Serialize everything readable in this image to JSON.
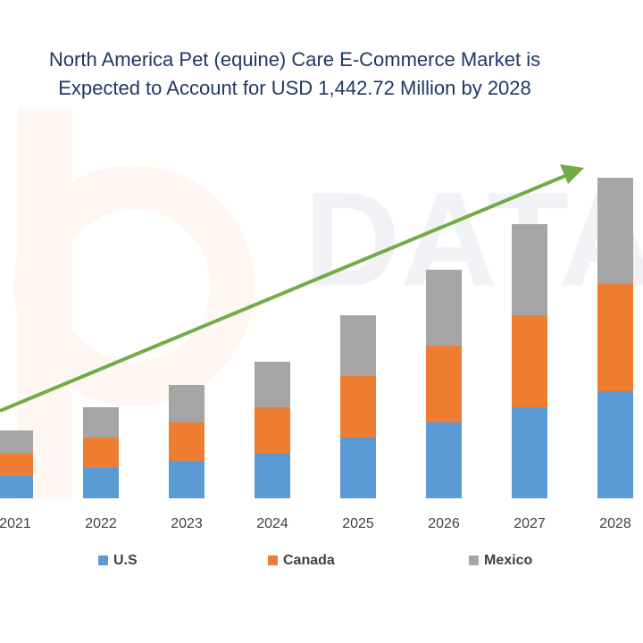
{
  "chart_data": {
    "type": "stacked_bar",
    "title": [
      "North America Pet (equine) Care E-Commerce Market is",
      "Expected to Account for USD 1,442.72 Million by 2028"
    ],
    "categories": [
      "2021",
      "2022",
      "2023",
      "2024",
      "2025",
      "2026",
      "2027",
      "2028"
    ],
    "series": [
      {
        "name": "U.S",
        "color": "#5b9bd5",
        "values": [
          25,
          34,
          42,
          50,
          68,
          85,
          102,
          120
        ]
      },
      {
        "name": "Canada",
        "color": "#ed7d31",
        "values": [
          25,
          34,
          43,
          52,
          69,
          86,
          103,
          120
        ]
      },
      {
        "name": "Mexico",
        "color": "#a5a5a5",
        "values": [
          26,
          34,
          42,
          51,
          68,
          85,
          102,
          119
        ]
      }
    ]
  }
}
